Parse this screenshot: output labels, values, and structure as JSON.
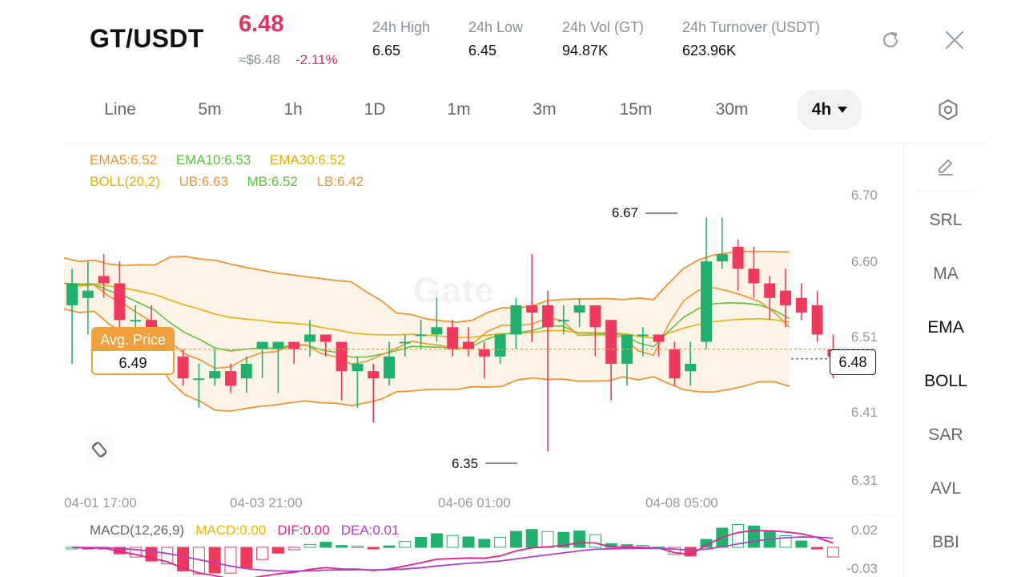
{
  "header": {
    "pair": "GT/USDT",
    "price": "6.48",
    "usd_price": "≈$6.48",
    "change": "-2.11%",
    "stats": [
      {
        "label": "24h   High",
        "value": "6.65"
      },
      {
        "label": "24h   Low",
        "value": "6.45"
      },
      {
        "label": "24h   Vol (GT)",
        "value": "94.87K"
      },
      {
        "label": "24h   Turnover (USDT)",
        "value": "623.96K"
      }
    ],
    "refresh_icon": "refresh-icon",
    "close_icon": "close-icon"
  },
  "tabs": [
    {
      "label": "Line"
    },
    {
      "label": "5m"
    },
    {
      "label": "1h"
    },
    {
      "label": "1D"
    },
    {
      "label": "1m"
    },
    {
      "label": "3m"
    },
    {
      "label": "15m"
    },
    {
      "label": "30m"
    },
    {
      "label": "4h",
      "active": true
    }
  ],
  "settings_icon": "hexagon-gear-icon",
  "indicators": {
    "ema": {
      "ema5": "EMA5:6.52",
      "ema10": "EMA10:6.53",
      "ema30": "EMA30:6.52"
    },
    "boll": {
      "name": "BOLL(20,2)",
      "ub": "UB:6.63",
      "mb": "MB:6.52",
      "lb": "LB:6.42"
    },
    "macd": {
      "name": "MACD(12,26,9)",
      "macd": "MACD:0.00",
      "dif": "DIF:0.00",
      "dea": "DEA:0.01"
    }
  },
  "chart": {
    "avg_price_label": "Avg. Price",
    "avg_price_value": "6.49",
    "last_price": "6.48",
    "high_marker": "6.67",
    "low_marker": "6.35",
    "y_ticks": [
      "6.70",
      "6.60",
      "6.51",
      "6.41",
      "6.31"
    ],
    "x_ticks": [
      "04-01 17:00",
      "04-03 21:00",
      "04-06 01:00",
      "04-08 05:00"
    ],
    "macd_ticks": [
      "0.02",
      "-0.03"
    ],
    "watermark": "Gate"
  },
  "colors": {
    "up": "#20b26c",
    "down": "#ef3a5d",
    "ema5": "#f0962d",
    "ema10": "#59c737",
    "ema30": "#e8b100",
    "macd": "#f5b800",
    "dif": "#e91e8c",
    "dea": "#b23fc8",
    "avg": "#f0a03c"
  },
  "sidebar": {
    "items": [
      {
        "label": "SRL"
      },
      {
        "label": "MA"
      },
      {
        "label": "EMA",
        "active": true
      },
      {
        "label": "BOLL",
        "active": true
      },
      {
        "label": "SAR"
      },
      {
        "label": "AVL"
      },
      {
        "label": "BBI"
      }
    ],
    "draw_icon": "pencil-icon"
  },
  "sync_icon": "rotate-icon",
  "chart_data": {
    "type": "candlestick",
    "y_axis": {
      "min": 6.31,
      "max": 6.7,
      "ticks": [
        6.7,
        6.6,
        6.51,
        6.41,
        6.31
      ]
    },
    "x_ticks": [
      "04-01 17:00",
      "04-03 21:00",
      "04-06 01:00",
      "04-08 05:00"
    ],
    "candles": [
      {
        "o": 6.55,
        "c": 6.58,
        "h": 6.6,
        "l": 6.47
      },
      {
        "o": 6.56,
        "c": 6.57,
        "h": 6.61,
        "l": 6.51
      },
      {
        "o": 6.59,
        "c": 6.58,
        "h": 6.62,
        "l": 6.56
      },
      {
        "o": 6.58,
        "c": 6.53,
        "h": 6.61,
        "l": 6.5
      },
      {
        "o": 6.53,
        "c": 6.53,
        "h": 6.55,
        "l": 6.51
      },
      {
        "o": 6.53,
        "c": 6.51,
        "h": 6.55,
        "l": 6.47
      },
      {
        "o": 6.51,
        "c": 6.5,
        "h": 6.52,
        "l": 6.46
      },
      {
        "o": 6.48,
        "c": 6.45,
        "h": 6.49,
        "l": 6.44
      },
      {
        "o": 6.45,
        "c": 6.45,
        "h": 6.47,
        "l": 6.41
      },
      {
        "o": 6.45,
        "c": 6.46,
        "h": 6.49,
        "l": 6.44
      },
      {
        "o": 6.46,
        "c": 6.44,
        "h": 6.47,
        "l": 6.43
      },
      {
        "o": 6.45,
        "c": 6.47,
        "h": 6.48,
        "l": 6.43
      },
      {
        "o": 6.49,
        "c": 6.5,
        "h": 6.5,
        "l": 6.45
      },
      {
        "o": 6.49,
        "c": 6.5,
        "h": 6.5,
        "l": 6.43
      },
      {
        "o": 6.5,
        "c": 6.49,
        "h": 6.5,
        "l": 6.47
      },
      {
        "o": 6.5,
        "c": 6.51,
        "h": 6.53,
        "l": 6.48
      },
      {
        "o": 6.51,
        "c": 6.5,
        "h": 6.51,
        "l": 6.48
      },
      {
        "o": 6.5,
        "c": 6.46,
        "h": 6.5,
        "l": 6.42
      },
      {
        "o": 6.46,
        "c": 6.47,
        "h": 6.48,
        "l": 6.41
      },
      {
        "o": 6.46,
        "c": 6.45,
        "h": 6.47,
        "l": 6.39
      },
      {
        "o": 6.45,
        "c": 6.48,
        "h": 6.5,
        "l": 6.44
      },
      {
        "o": 6.5,
        "c": 6.5,
        "h": 6.51,
        "l": 6.48
      },
      {
        "o": 6.51,
        "c": 6.51,
        "h": 6.53,
        "l": 6.49
      },
      {
        "o": 6.51,
        "c": 6.52,
        "h": 6.56,
        "l": 6.5
      },
      {
        "o": 6.52,
        "c": 6.49,
        "h": 6.53,
        "l": 6.48
      },
      {
        "o": 6.5,
        "c": 6.49,
        "h": 6.52,
        "l": 6.48
      },
      {
        "o": 6.49,
        "c": 6.48,
        "h": 6.5,
        "l": 6.45
      },
      {
        "o": 6.48,
        "c": 6.51,
        "h": 6.51,
        "l": 6.47
      },
      {
        "o": 6.51,
        "c": 6.55,
        "h": 6.56,
        "l": 6.49
      },
      {
        "o": 6.55,
        "c": 6.54,
        "h": 6.62,
        "l": 6.5
      },
      {
        "o": 6.55,
        "c": 6.52,
        "h": 6.57,
        "l": 6.35
      },
      {
        "o": 6.53,
        "c": 6.53,
        "h": 6.55,
        "l": 6.51
      },
      {
        "o": 6.54,
        "c": 6.55,
        "h": 6.56,
        "l": 6.52
      },
      {
        "o": 6.55,
        "c": 6.52,
        "h": 6.55,
        "l": 6.48
      },
      {
        "o": 6.53,
        "c": 6.47,
        "h": 6.53,
        "l": 6.42
      },
      {
        "o": 6.47,
        "c": 6.51,
        "h": 6.51,
        "l": 6.44
      },
      {
        "o": 6.51,
        "c": 6.51,
        "h": 6.52,
        "l": 6.48
      },
      {
        "o": 6.51,
        "c": 6.5,
        "h": 6.51,
        "l": 6.48
      },
      {
        "o": 6.49,
        "c": 6.45,
        "h": 6.5,
        "l": 6.44
      },
      {
        "o": 6.46,
        "c": 6.47,
        "h": 6.5,
        "l": 6.44
      },
      {
        "o": 6.5,
        "c": 6.61,
        "h": 6.67,
        "l": 6.49
      },
      {
        "o": 6.61,
        "c": 6.62,
        "h": 6.67,
        "l": 6.6
      },
      {
        "o": 6.63,
        "c": 6.6,
        "h": 6.64,
        "l": 6.57
      },
      {
        "o": 6.6,
        "c": 6.58,
        "h": 6.63,
        "l": 6.56
      },
      {
        "o": 6.58,
        "c": 6.56,
        "h": 6.59,
        "l": 6.53
      },
      {
        "o": 6.57,
        "c": 6.55,
        "h": 6.6,
        "l": 6.52
      },
      {
        "o": 6.56,
        "c": 6.54,
        "h": 6.58,
        "l": 6.53
      },
      {
        "o": 6.55,
        "c": 6.51,
        "h": 6.57,
        "l": 6.5
      },
      {
        "o": 6.49,
        "c": 6.48,
        "h": 6.51,
        "l": 6.45
      }
    ],
    "avg_price": 6.49,
    "last_price": 6.48,
    "macd": {
      "y_ticks": [
        0.02,
        -0.03
      ]
    }
  }
}
